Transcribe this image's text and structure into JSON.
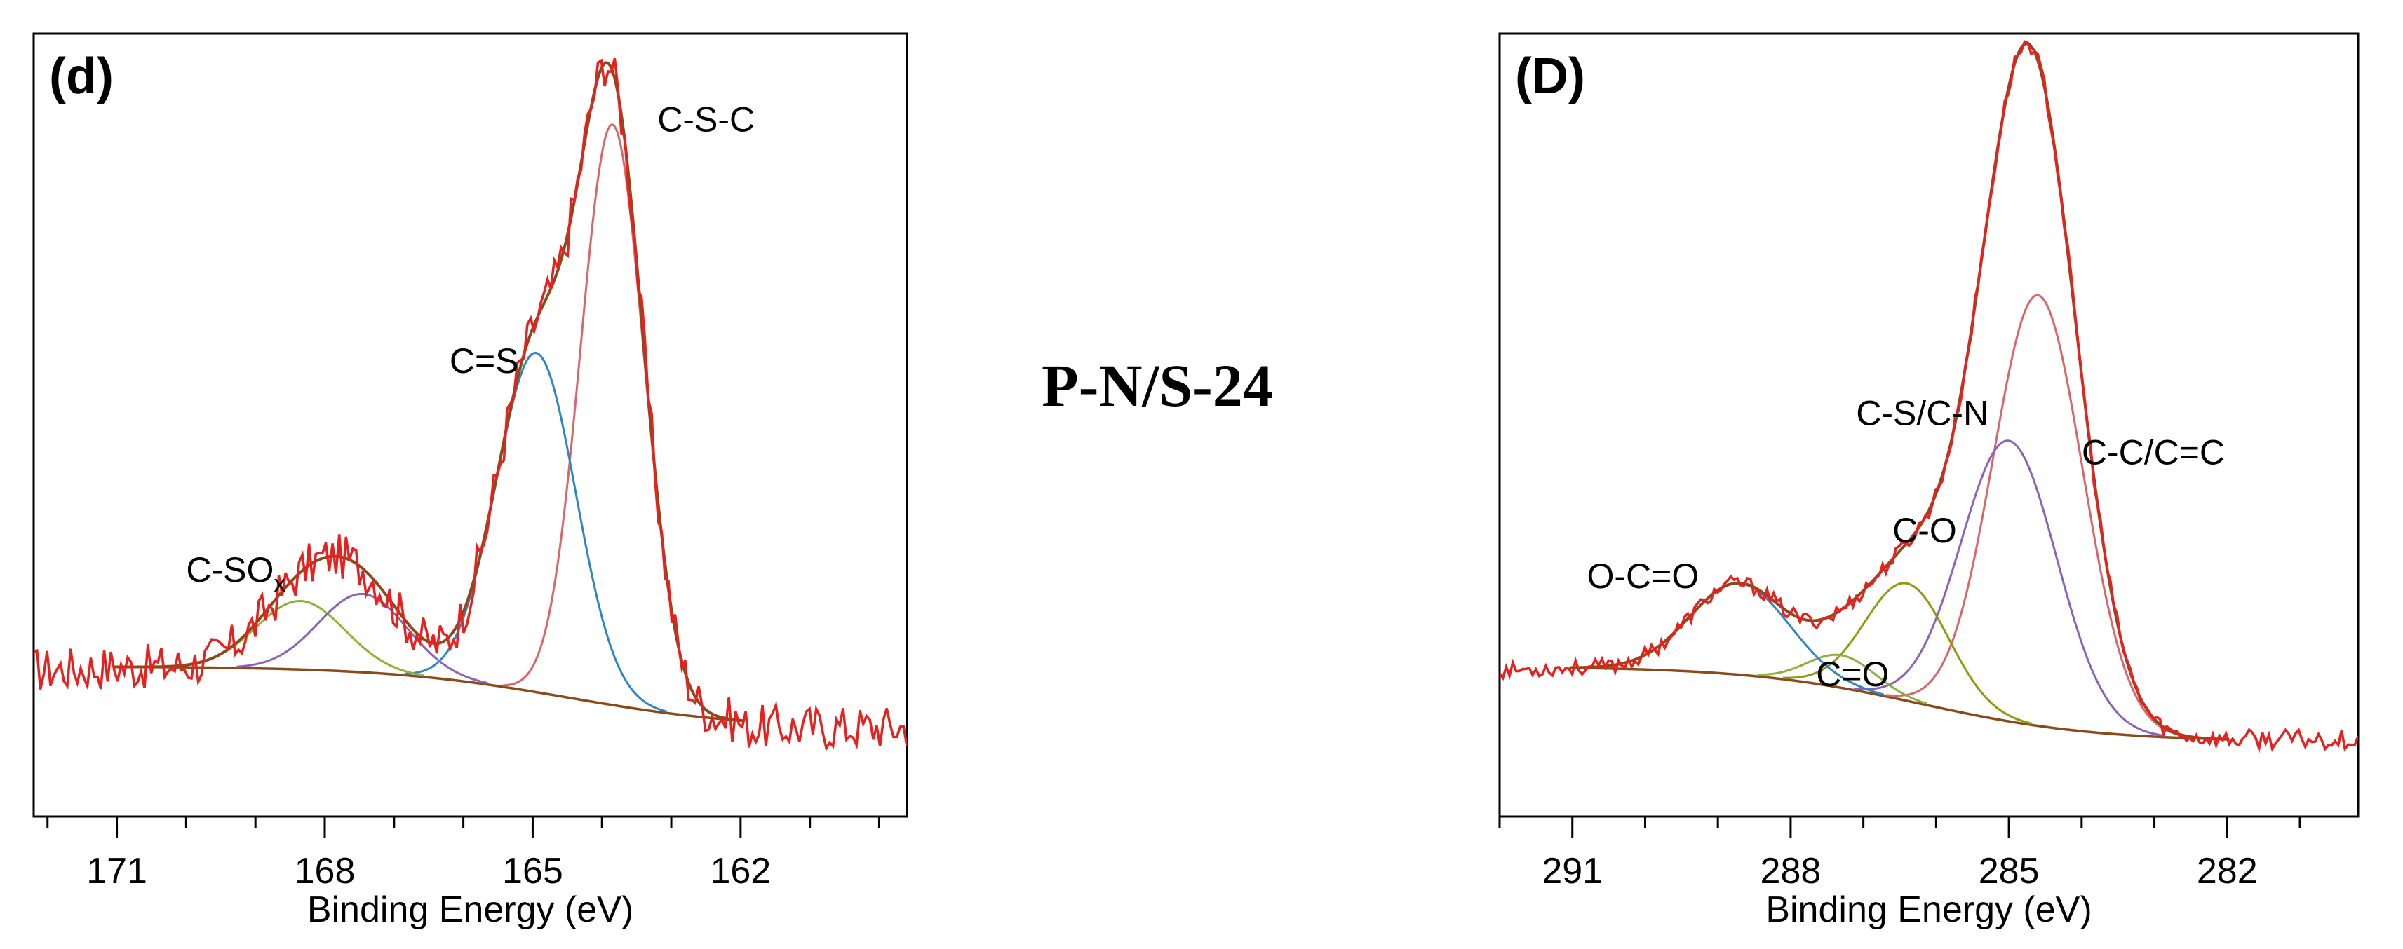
{
  "center_title": "P-N/S-24",
  "colors": {
    "raw": "#e8201e",
    "envelope": "#8b4a1a",
    "background": "#8b4a1a",
    "c_s_c": "#d9666a",
    "c_eq_s": "#2f86c6",
    "c_sox_a": "#8db238",
    "c_sox_b": "#8e62b5",
    "c_c": "#d9666a",
    "c_s_c_n": "#8e62b5",
    "c_o": "#8f9a10",
    "c_eq_o": "#8db238",
    "o_c_eq_o": "#2f86c6"
  },
  "chart_data": [
    {
      "type": "line",
      "panel_label": "(d)",
      "title": "",
      "xlabel": "Binding Energy (eV)",
      "ylabel": "",
      "xlim": [
        172.2,
        159.6
      ],
      "ylim": [
        -0.12,
        1.08
      ],
      "xticks": [
        171,
        168,
        165,
        162
      ],
      "xtick_labels": [
        "171",
        "168",
        "165",
        "162"
      ],
      "minor_tick_step": 1,
      "background": {
        "type": "shirley",
        "high": 0.11,
        "low": 0.015,
        "from": 171,
        "to": 162,
        "center": 164.5,
        "width": 1.3
      },
      "series": [
        {
          "name": "C-S-C",
          "color_key": "c_s_c",
          "center": 163.85,
          "height": 0.89,
          "fwhm": 1.08
        },
        {
          "name": "C=S",
          "color_key": "c_eq_s",
          "center": 164.95,
          "height": 0.52,
          "fwhm": 1.35
        },
        {
          "name": "C-SOx (a)",
          "color_key": "c_sox_a",
          "center": 168.35,
          "height": 0.105,
          "fwhm": 1.5
        },
        {
          "name": "C-SOx (b)",
          "color_key": "c_sox_b",
          "center": 167.45,
          "height": 0.12,
          "fwhm": 1.5
        }
      ],
      "raw_noise_amplitude": 0.035,
      "annotations": [
        {
          "text": "C-S-C",
          "x": 163.2,
          "y": 0.93
        },
        {
          "text": "C=S",
          "x": 166.2,
          "y": 0.56
        },
        {
          "text": "C-SO",
          "subscript": "x",
          "x": 170.0,
          "y": 0.24
        }
      ]
    },
    {
      "type": "line",
      "panel_label": "(D)",
      "title": "",
      "xlabel": "Binding Energy (eV)",
      "ylabel": "",
      "xlim": [
        292.0,
        280.2
      ],
      "ylim": [
        -0.12,
        1.08
      ],
      "xticks": [
        291,
        288,
        285,
        282
      ],
      "xtick_labels": [
        "291",
        "288",
        "285",
        "282"
      ],
      "minor_tick_step": 1,
      "background": {
        "type": "shirley",
        "high": 0.11,
        "low": -0.005,
        "from": 291,
        "to": 282,
        "center": 286.2,
        "width": 1.2
      },
      "series": [
        {
          "name": "C-C/C=C",
          "color_key": "c_c",
          "center": 284.6,
          "height": 0.66,
          "fwhm": 1.45
        },
        {
          "name": "C-S/C-N",
          "color_key": "c_s_c_n",
          "center": 285.0,
          "height": 0.43,
          "fwhm": 1.55
        },
        {
          "name": "C-O",
          "color_key": "c_o",
          "center": 286.4,
          "height": 0.18,
          "fwhm": 1.35
        },
        {
          "name": "C=O",
          "color_key": "c_eq_o",
          "center": 287.3,
          "height": 0.05,
          "fwhm": 1.1
        },
        {
          "name": "O-C=O",
          "color_key": "o_c_eq_o",
          "center": 288.7,
          "height": 0.14,
          "fwhm": 1.6
        }
      ],
      "raw_noise_amplitude": 0.015,
      "annotations": [
        {
          "text": "C-C/C=C",
          "x": 284.0,
          "y": 0.42
        },
        {
          "text": "C-S/C-N",
          "x": 287.1,
          "y": 0.48
        },
        {
          "text": "C-O",
          "x": 286.6,
          "y": 0.3
        },
        {
          "text": "C=O",
          "x": 287.65,
          "y": 0.08
        },
        {
          "text": "O-C=O",
          "x": 290.8,
          "y": 0.23
        }
      ]
    }
  ]
}
